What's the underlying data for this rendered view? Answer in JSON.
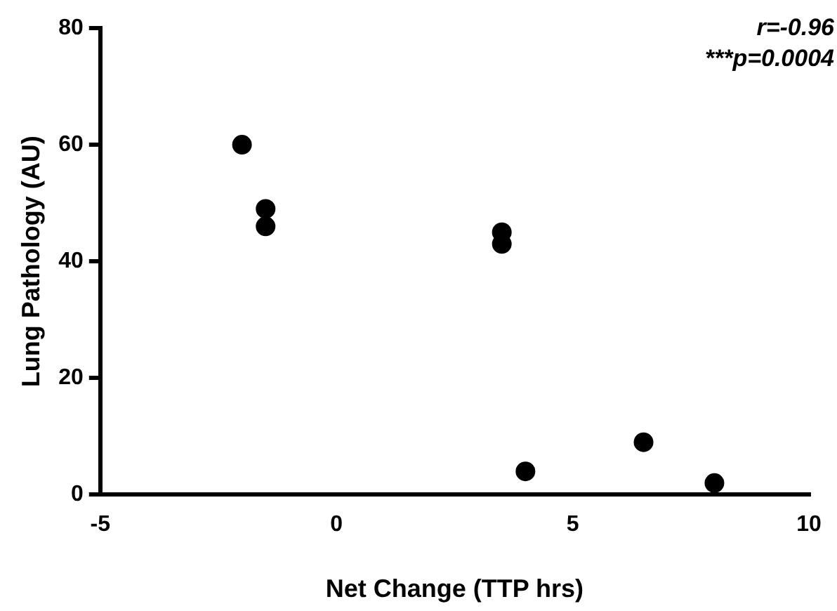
{
  "chart_data": {
    "type": "scatter",
    "xlabel": "Net Change (TTP hrs)",
    "ylabel": "Lung Pathology (AU)",
    "annotations": [
      "r=-0.96",
      "***p=0.0004"
    ],
    "x": [
      -2,
      -1.5,
      -1.5,
      3.5,
      3.5,
      4,
      6.5,
      8
    ],
    "values": [
      60,
      49,
      46,
      45,
      43,
      4,
      9,
      2
    ],
    "color": "#000000",
    "marker": "circle",
    "xlim": [
      -5,
      10
    ],
    "xticks": [
      -5,
      0,
      5,
      10
    ],
    "ylim": [
      0,
      80
    ],
    "yticks": [
      0,
      20,
      40,
      60,
      80
    ],
    "grid": false,
    "legend": false
  }
}
